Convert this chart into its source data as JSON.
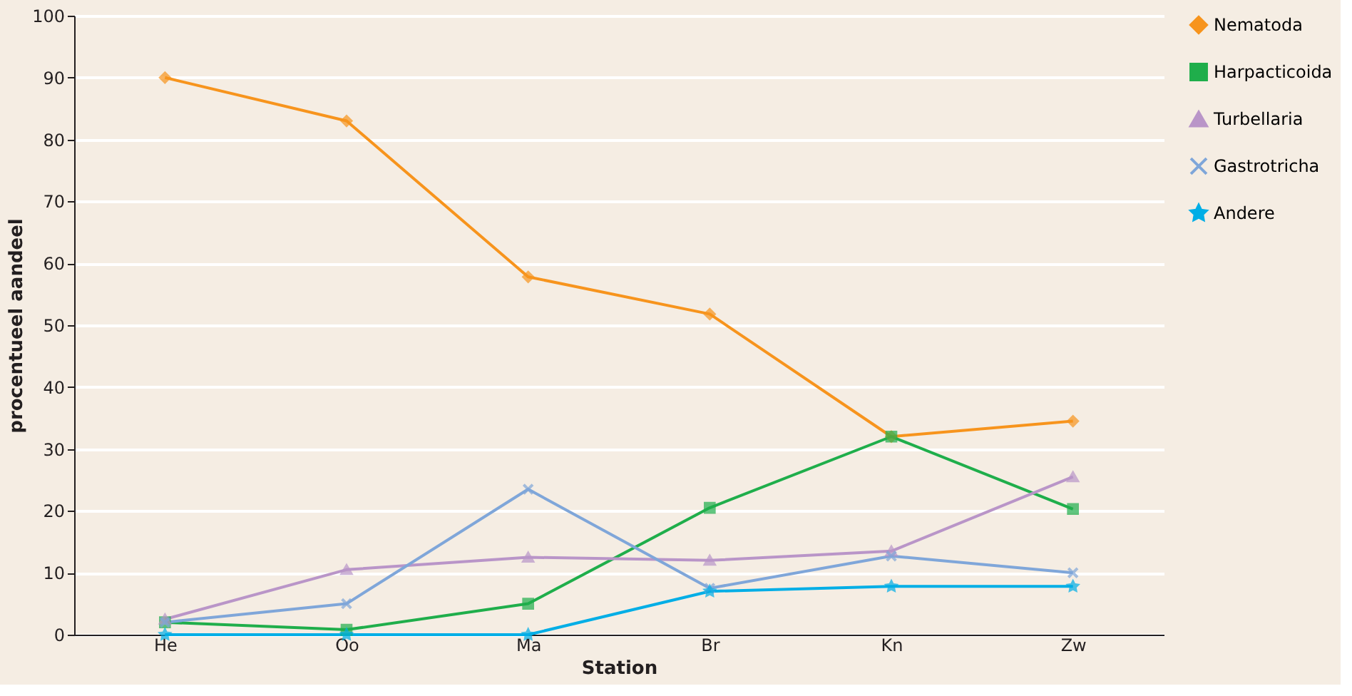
{
  "chart_data": {
    "type": "line",
    "xlabel": "Station",
    "ylabel": "procentueel aandeel",
    "categories": [
      "He",
      "Oo",
      "Ma",
      "Br",
      "Kn",
      "Zw"
    ],
    "ylim": [
      0,
      100
    ],
    "yticks": [
      0,
      10,
      20,
      30,
      40,
      50,
      60,
      70,
      80,
      90,
      100
    ],
    "grid": "y",
    "legend": "right",
    "line_style": "solid",
    "series": [
      {
        "name": "Nematoda",
        "color": "#f7941d",
        "marker": "diamond",
        "values": [
          90,
          83,
          57.8,
          51.8,
          32,
          34.5
        ]
      },
      {
        "name": "Harpacticoida",
        "color": "#1fae4b",
        "marker": "square",
        "values": [
          2,
          0.8,
          5,
          20.5,
          32,
          20.3
        ]
      },
      {
        "name": "Turbellaria",
        "color": "#b995c8",
        "marker": "triangle",
        "values": [
          2.5,
          10.5,
          12.5,
          12,
          13.5,
          25.5
        ]
      },
      {
        "name": "Gastrotricha",
        "color": "#7fa6d9",
        "marker": "cross",
        "values": [
          2,
          5,
          23.5,
          7.5,
          12.7,
          10
        ]
      },
      {
        "name": "Andere",
        "color": "#00aee6",
        "marker": "star",
        "values": [
          0,
          0,
          0,
          7,
          7.8,
          7.8
        ]
      }
    ]
  }
}
